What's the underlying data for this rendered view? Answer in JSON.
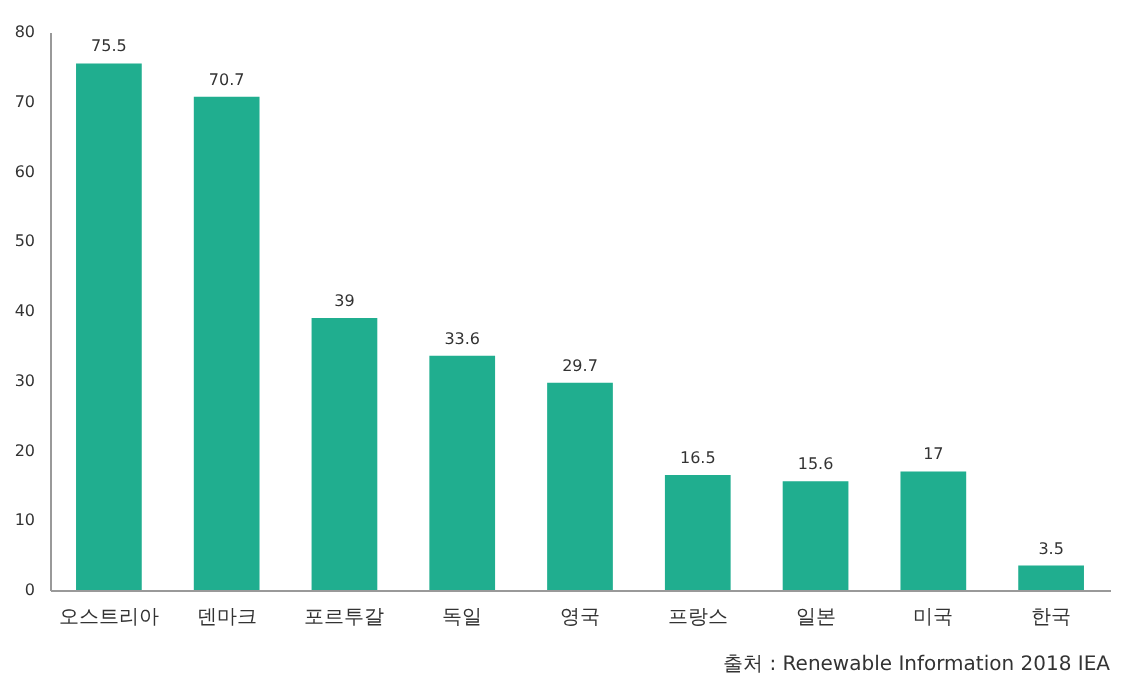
{
  "chart_data": {
    "type": "bar",
    "categories": [
      "오스트리아",
      "덴마크",
      "포르투갈",
      "독일",
      "영국",
      "프랑스",
      "일본",
      "미국",
      "한국"
    ],
    "values": [
      75.5,
      70.7,
      39,
      33.6,
      29.7,
      16.5,
      15.6,
      17,
      3.5
    ],
    "color": "#20ae8f",
    "ylim": [
      0,
      80
    ],
    "yticks": [
      0,
      10,
      20,
      30,
      40,
      50,
      60,
      70,
      80
    ],
    "data_labels": true,
    "annotations": [
      "출처 : Renewable Information 2018 IEA"
    ]
  }
}
